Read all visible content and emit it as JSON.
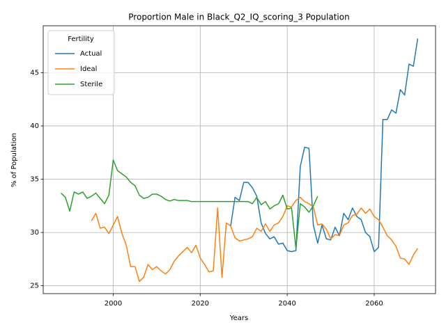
{
  "chart_data": {
    "type": "line",
    "title": "Proportion Male in Black_Q2_IQ_scoring_3 Population",
    "xlabel": "Years",
    "ylabel": "% of Population",
    "x": [
      1988,
      1989,
      1990,
      1991,
      1992,
      1993,
      1994,
      1995,
      1996,
      1997,
      1998,
      1999,
      2000,
      2001,
      2002,
      2003,
      2004,
      2005,
      2006,
      2007,
      2008,
      2009,
      2010,
      2011,
      2012,
      2013,
      2014,
      2015,
      2016,
      2017,
      2018,
      2019,
      2020,
      2021,
      2022,
      2023,
      2024,
      2025,
      2026,
      2027,
      2028,
      2029,
      2030,
      2031,
      2032,
      2033,
      2034,
      2035,
      2036,
      2037,
      2038,
      2039,
      2040,
      2041,
      2042,
      2043,
      2044,
      2045,
      2046,
      2047,
      2048,
      2049,
      2050,
      2051,
      2052,
      2053,
      2054,
      2055,
      2056,
      2057,
      2058,
      2059,
      2060,
      2061,
      2062,
      2063,
      2064,
      2065,
      2066,
      2067,
      2068,
      2069,
      2070
    ],
    "series": [
      {
        "name": "Actual",
        "color": "#1f77b4",
        "values": [
          null,
          null,
          null,
          null,
          null,
          null,
          null,
          null,
          null,
          null,
          null,
          null,
          null,
          null,
          null,
          null,
          null,
          null,
          null,
          null,
          null,
          null,
          null,
          null,
          null,
          null,
          null,
          null,
          null,
          null,
          null,
          null,
          null,
          null,
          null,
          null,
          null,
          null,
          null,
          30.6,
          33.3,
          33.0,
          34.7,
          34.7,
          34.2,
          33.4,
          30.9,
          29.9,
          29.4,
          29.6,
          28.9,
          29.0,
          28.3,
          28.2,
          28.3,
          36.2,
          38.0,
          37.9,
          30.7,
          29.0,
          30.7,
          29.4,
          29.3,
          30.5,
          29.7,
          31.8,
          31.2,
          32.3,
          31.5,
          31.2,
          30.0,
          29.6,
          28.2,
          28.6,
          40.6,
          40.6,
          41.5,
          41.2,
          43.4,
          42.9,
          45.8,
          45.6,
          48.2
        ]
      },
      {
        "name": "Ideal",
        "color": "#ff7f0e",
        "values": [
          null,
          null,
          null,
          null,
          null,
          null,
          null,
          31.1,
          31.8,
          30.4,
          30.5,
          29.9,
          30.7,
          31.5,
          29.9,
          28.8,
          26.8,
          26.8,
          25.4,
          25.8,
          27.0,
          26.5,
          26.8,
          26.4,
          26.1,
          26.5,
          27.3,
          27.8,
          28.2,
          28.6,
          28.1,
          28.8,
          27.6,
          27.0,
          26.3,
          26.4,
          32.3,
          25.8,
          30.9,
          30.6,
          29.5,
          29.2,
          29.3,
          29.4,
          29.6,
          30.4,
          30.1,
          30.8,
          30.1,
          30.7,
          30.9,
          31.5,
          32.5,
          32.4,
          33.0,
          33.3,
          32.9,
          32.7,
          32.4,
          30.7,
          30.8,
          30.3,
          29.4,
          29.8,
          29.7,
          30.7,
          30.9,
          31.6,
          31.7,
          32.3,
          31.8,
          32.2,
          31.5,
          31.2,
          30.5,
          29.7,
          29.3,
          28.7,
          27.6,
          27.5,
          27.0,
          27.9,
          28.5
        ]
      },
      {
        "name": "Sterile",
        "color": "#2ca02c",
        "values": [
          33.7,
          33.3,
          32.0,
          33.8,
          33.6,
          33.8,
          33.2,
          33.4,
          33.7,
          33.2,
          32.7,
          33.5,
          36.8,
          35.8,
          35.5,
          35.2,
          34.7,
          34.4,
          33.5,
          33.2,
          33.3,
          33.6,
          33.6,
          33.4,
          33.1,
          32.95,
          33.1,
          33.0,
          33.0,
          33.0,
          32.9,
          32.9,
          32.9,
          32.9,
          32.9,
          32.9,
          32.9,
          32.9,
          32.9,
          32.9,
          32.9,
          32.9,
          32.9,
          32.9,
          32.7,
          33.3,
          32.6,
          32.9,
          32.2,
          32.5,
          32.7,
          33.5,
          32.2,
          32.3,
          28.5,
          32.7,
          32.4,
          31.9,
          32.5,
          33.4,
          null,
          null,
          null,
          null,
          null,
          null,
          null,
          null,
          null,
          null,
          null,
          null,
          null,
          null,
          null,
          null,
          null,
          null,
          null,
          null,
          null,
          null,
          null
        ]
      }
    ],
    "xlim": [
      1983.9,
      2074.1
    ],
    "ylim": [
      24.26,
      49.4
    ],
    "xticks": [
      2000,
      2020,
      2040,
      2060
    ],
    "yticks": [
      25,
      30,
      35,
      40,
      45
    ],
    "grid": true,
    "legend_title": "Fertility",
    "legend": "upper left"
  }
}
